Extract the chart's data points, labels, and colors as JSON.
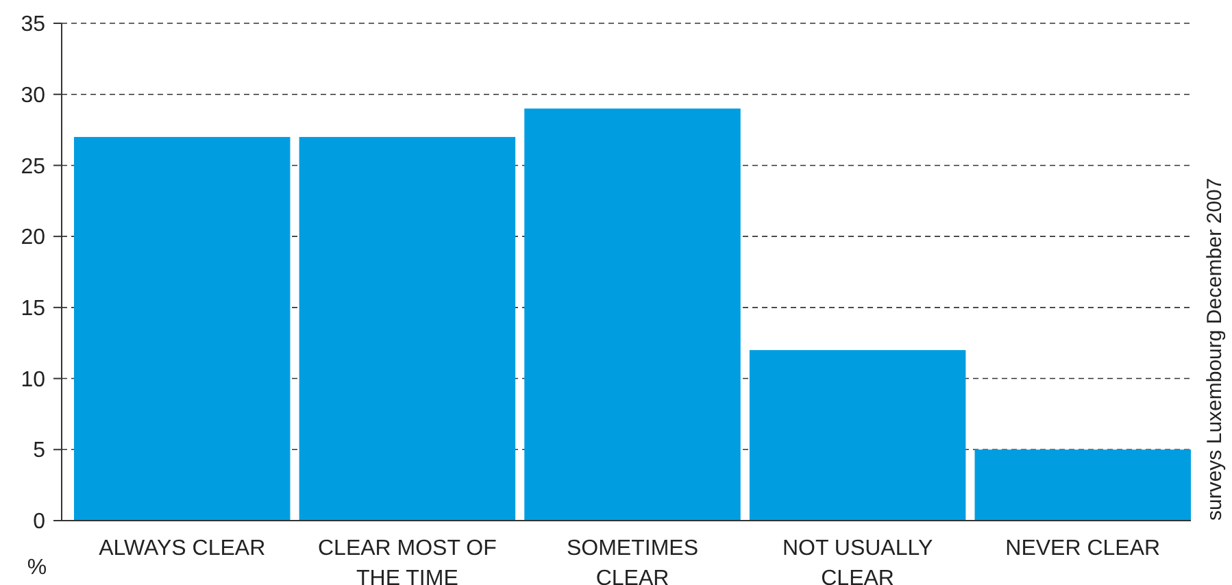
{
  "chart_data": {
    "type": "bar",
    "ylabel": "%",
    "categories": [
      "ALWAYS CLEAR",
      "CLEAR MOST OF THE TIME",
      "SOMETIMES CLEAR",
      "NOT USUALLY CLEAR",
      "NEVER CLEAR"
    ],
    "values": [
      27,
      27,
      29,
      12,
      5
    ],
    "color": "#009ee0",
    "ylim": [
      0,
      35
    ],
    "yticks": [
      0,
      5,
      10,
      15,
      20,
      25,
      30,
      35
    ],
    "grid": "y",
    "annotations": [
      "surveys Luxembourg December 2007"
    ]
  }
}
